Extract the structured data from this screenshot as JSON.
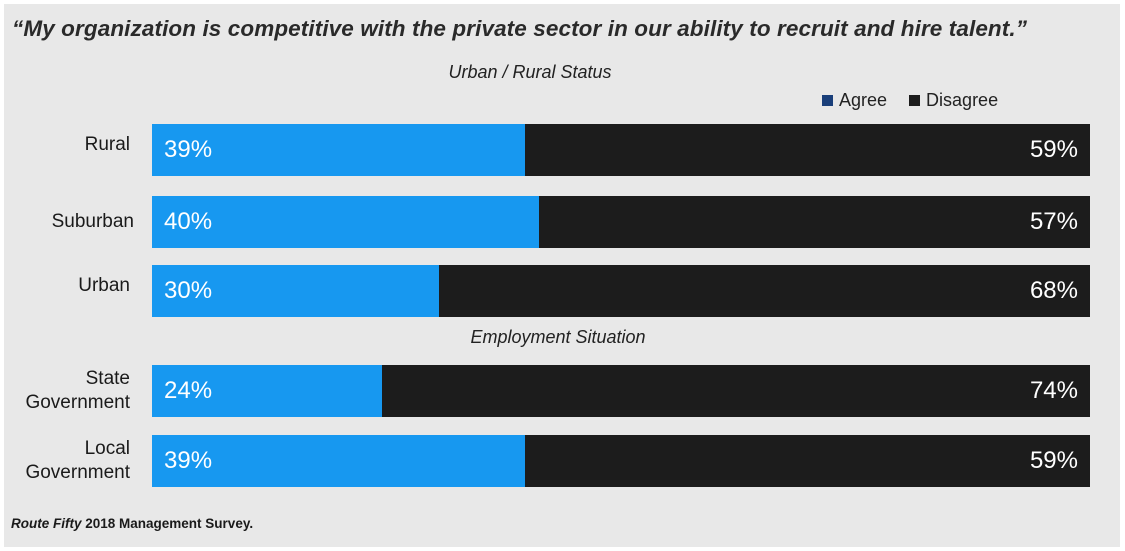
{
  "chart_data": {
    "type": "bar",
    "orientation": "horizontal",
    "stacked": true,
    "title": "“My organization is competitive with the private sector in our ability to recruit and hire talent.”",
    "legend": {
      "placement": "top-right",
      "entries": [
        {
          "name": "Agree",
          "color": "#1a3f7a"
        },
        {
          "name": "Disagree",
          "color": "#1c1c1c"
        }
      ]
    },
    "colors": {
      "agree_bar": "#1798f0",
      "disagree_bar": "#1c1c1c",
      "background": "#e8e8e8"
    },
    "xlim": [
      0,
      100
    ],
    "grid": false,
    "groups": [
      {
        "title": "Urban / Rural Status",
        "categories": [
          "Rural",
          "Suburban",
          "Urban"
        ],
        "series": [
          {
            "name": "Agree",
            "values": [
              39,
              40,
              30
            ],
            "labels": [
              "39%",
              "40%",
              "30%"
            ]
          },
          {
            "name": "Disagree",
            "values": [
              59,
              57,
              68
            ],
            "labels": [
              "59%",
              "57%",
              "68%"
            ]
          }
        ]
      },
      {
        "title": "Employment Situation",
        "categories": [
          "State\nGovernment",
          "Local\nGovernment"
        ],
        "series": [
          {
            "name": "Agree",
            "values": [
              24,
              39
            ],
            "labels": [
              "24%",
              "39%"
            ]
          },
          {
            "name": "Disagree",
            "values": [
              74,
              59
            ],
            "labels": [
              "74%",
              "59%"
            ]
          }
        ]
      }
    ]
  },
  "source": {
    "publication": "Route Fifty",
    "text": " 2018 Management Survey."
  }
}
